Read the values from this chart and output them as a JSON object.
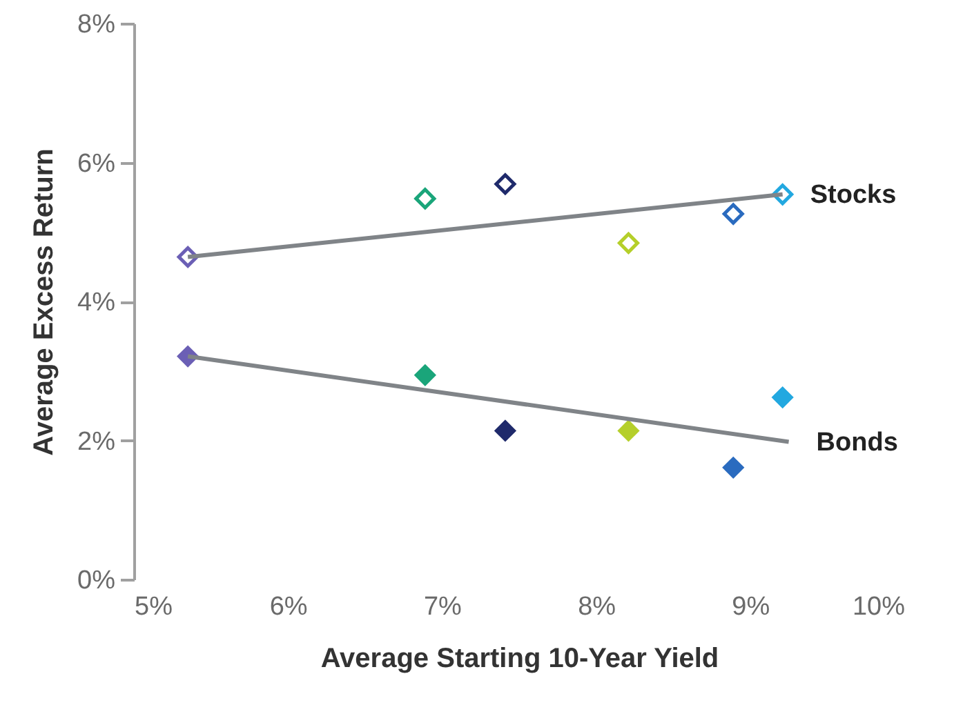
{
  "chart_data": {
    "type": "scatter",
    "xlabel": "Average Starting 10-Year Yield",
    "ylabel": "Average Excess Return",
    "x": [
      5.35,
      6.89,
      7.41,
      8.21,
      8.89,
      9.21
    ],
    "series": [
      {
        "type": "scatter",
        "colors": [
          "#6b5fb5",
          "#1aa57a",
          "#1f2a6b",
          "#b5cf2a",
          "#2a6bbf",
          "#22a8e0"
        ],
        "values": [
          4.64,
          5.48,
          5.69,
          4.84,
          5.26,
          5.54
        ]
      },
      {
        "type": "scatter",
        "colors": [
          "#6b5fb5",
          "#1aa57a",
          "#1f2a6b",
          "#b5cf2a",
          "#2a6bbf",
          "#22a8e0"
        ],
        "values": [
          3.21,
          2.94,
          2.14,
          2.14,
          1.61,
          2.62
        ]
      },
      {
        "type": "line",
        "marker": "none",
        "name": "Stocks",
        "color": "#808488",
        "x": [
          5.35,
          9.21
        ],
        "values": [
          4.64,
          5.54
        ]
      },
      {
        "type": "line",
        "marker": "none",
        "name": "Bonds",
        "color": "#808488",
        "x": [
          5.35,
          9.25
        ],
        "values": [
          3.21,
          1.98
        ]
      }
    ],
    "marker": "diamond",
    "grid": false,
    "xlim": [
      5,
      10
    ],
    "xticks": [
      {
        "value": 5,
        "label": "5%"
      },
      {
        "value": 6,
        "label": "6%"
      },
      {
        "value": 7,
        "label": "7%"
      },
      {
        "value": 8,
        "label": "8%"
      },
      {
        "value": 9,
        "label": "9%"
      },
      {
        "value": 10,
        "label": "10%"
      }
    ],
    "ylim": [
      0,
      8
    ],
    "yticks": [
      {
        "value": 0,
        "label": "0%"
      },
      {
        "value": 2,
        "label": "2%"
      },
      {
        "value": 4,
        "label": "4%"
      },
      {
        "value": 6,
        "label": "6%"
      },
      {
        "value": 8,
        "label": "8%"
      }
    ]
  }
}
